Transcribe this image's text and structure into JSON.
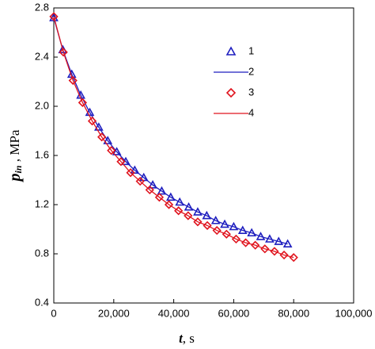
{
  "chart_data": {
    "type": "line",
    "x_label": {
      "symbol": "t",
      "unit": ", s"
    },
    "y_label": {
      "symbol": "p",
      "subscript": "in",
      "unit": " , MPa"
    },
    "xlim": [
      0,
      100000
    ],
    "xticks": [
      0,
      {
        "value": 20000,
        "label": "20,000"
      },
      {
        "value": 40000,
        "label": "40,000"
      },
      {
        "value": 60000,
        "label": "60,000"
      },
      {
        "value": 80000,
        "label": "80,000"
      },
      {
        "value": 100000,
        "label": "100,000"
      }
    ],
    "ylim": [
      0.4,
      2.8
    ],
    "yticks": [
      0.4,
      0.8,
      1.2,
      1.6,
      {
        "value": 2.0,
        "label": "2.0"
      },
      2.4,
      2.8
    ],
    "legend": "upper-right",
    "series": [
      {
        "name": "1",
        "color": "#1f1fbf",
        "marker": "triangle",
        "x": [
          0,
          3000,
          6000,
          9000,
          12000,
          15000,
          18000,
          21000,
          24000,
          27000,
          30000,
          33000,
          36000,
          39000,
          42000,
          45000,
          48000,
          51000,
          54000,
          57000,
          60000,
          63000,
          66000,
          69000,
          72000,
          75000,
          78000
        ],
        "values": [
          2.72,
          2.46,
          2.26,
          2.09,
          1.95,
          1.83,
          1.72,
          1.63,
          1.55,
          1.48,
          1.42,
          1.36,
          1.31,
          1.26,
          1.22,
          1.18,
          1.14,
          1.11,
          1.07,
          1.04,
          1.02,
          0.99,
          0.97,
          0.94,
          0.92,
          0.9,
          0.88
        ]
      },
      {
        "name": "2",
        "color": "#1f1fbf",
        "marker": "line",
        "x": [
          0,
          3000,
          6000,
          9000,
          12000,
          15000,
          18000,
          21000,
          24000,
          27000,
          30000,
          33000,
          36000,
          39000,
          42000,
          45000,
          48000,
          51000,
          54000,
          57000,
          60000,
          63000,
          66000,
          69000,
          72000,
          75000,
          78000
        ],
        "values": [
          2.72,
          2.46,
          2.26,
          2.09,
          1.95,
          1.83,
          1.72,
          1.63,
          1.55,
          1.48,
          1.42,
          1.36,
          1.31,
          1.26,
          1.22,
          1.18,
          1.14,
          1.11,
          1.07,
          1.04,
          1.02,
          0.99,
          0.97,
          0.94,
          0.92,
          0.9,
          0.88
        ]
      },
      {
        "name": "3",
        "color": "#e0141e",
        "marker": "diamond",
        "x": [
          0,
          3200,
          6400,
          9600,
          12800,
          16000,
          19200,
          22400,
          25600,
          28800,
          32000,
          35200,
          38400,
          41600,
          44800,
          48000,
          51200,
          54400,
          57600,
          60800,
          64000,
          67200,
          70400,
          73600,
          76800,
          80000
        ],
        "values": [
          2.73,
          2.44,
          2.21,
          2.03,
          1.88,
          1.75,
          1.64,
          1.55,
          1.46,
          1.39,
          1.32,
          1.26,
          1.2,
          1.15,
          1.11,
          1.06,
          1.03,
          0.99,
          0.96,
          0.92,
          0.89,
          0.87,
          0.84,
          0.82,
          0.79,
          0.77
        ]
      },
      {
        "name": "4",
        "color": "#e0141e",
        "marker": "line",
        "x": [
          0,
          3200,
          6400,
          9600,
          12800,
          16000,
          19200,
          22400,
          25600,
          28800,
          32000,
          35200,
          38400,
          41600,
          44800,
          48000,
          51200,
          54400,
          57600,
          60800,
          64000,
          67200,
          70400,
          73600,
          76800,
          80000
        ],
        "values": [
          2.73,
          2.44,
          2.21,
          2.03,
          1.88,
          1.75,
          1.64,
          1.55,
          1.46,
          1.39,
          1.32,
          1.26,
          1.2,
          1.15,
          1.11,
          1.06,
          1.03,
          0.99,
          0.96,
          0.92,
          0.89,
          0.87,
          0.84,
          0.82,
          0.79,
          0.77
        ]
      }
    ]
  }
}
